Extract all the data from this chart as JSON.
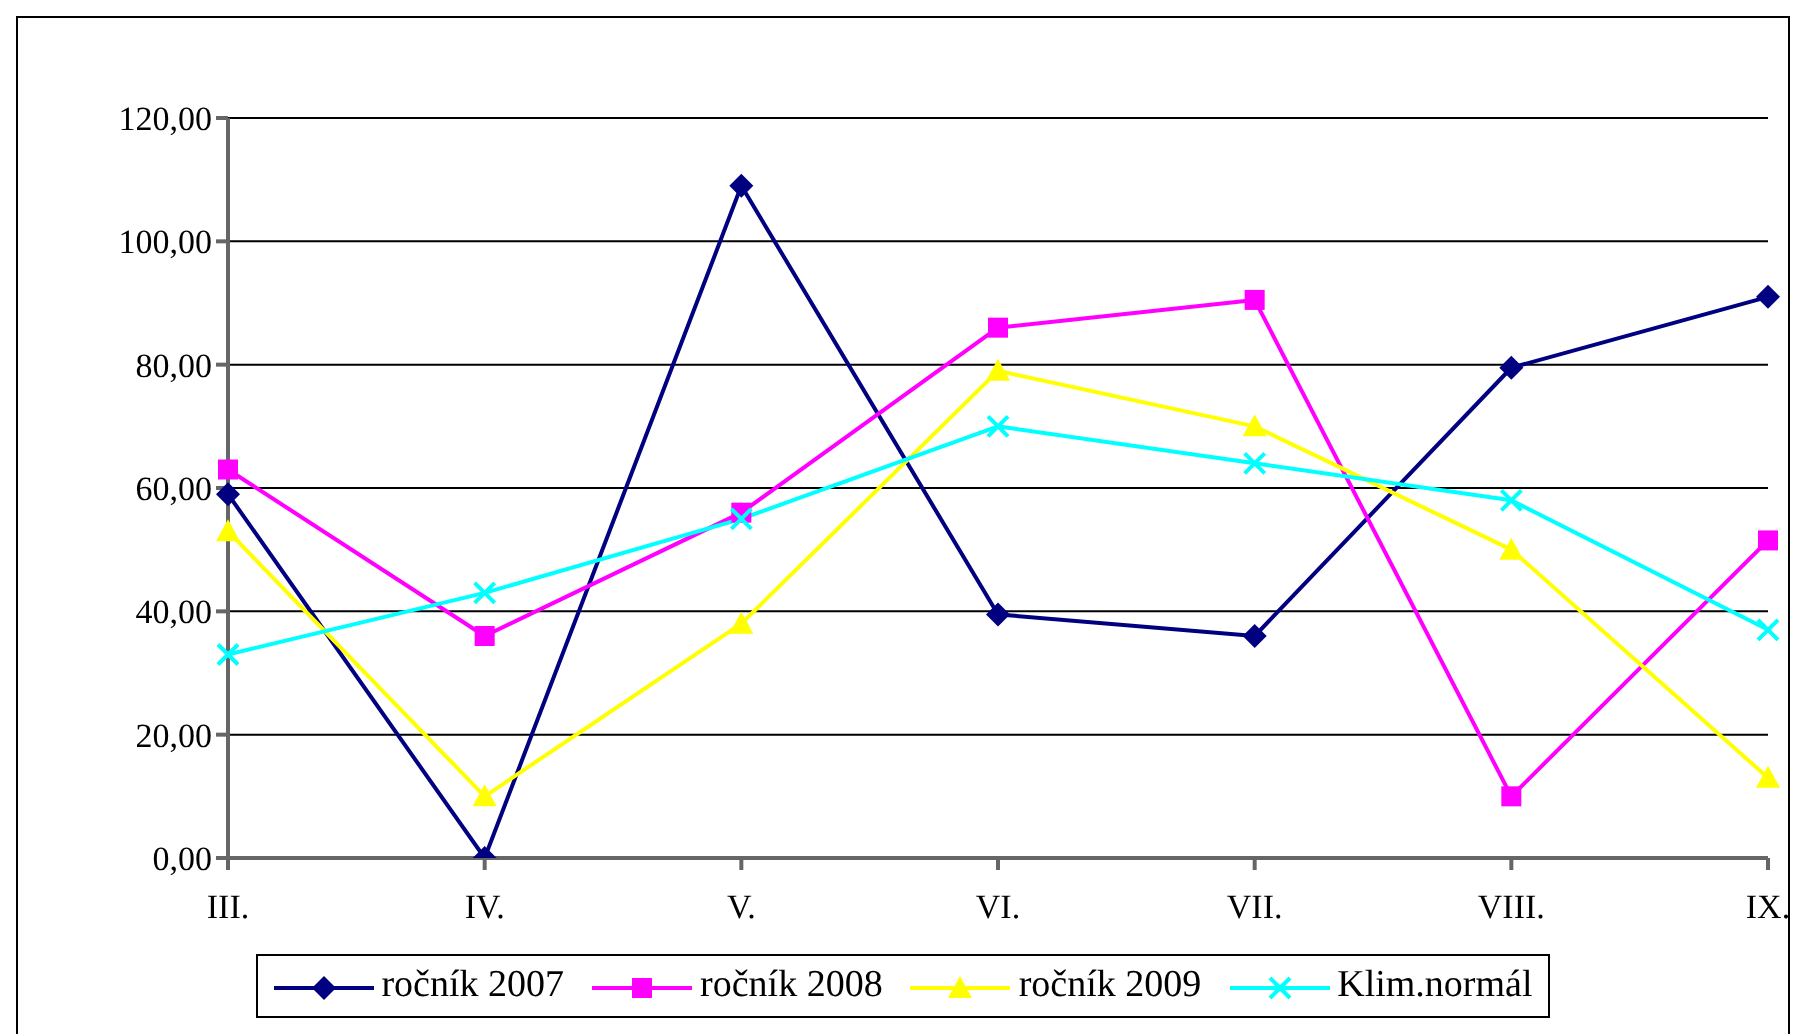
{
  "chart_data": {
    "type": "line",
    "categories": [
      "III.",
      "IV.",
      "V.",
      "VI.",
      "VII.",
      "VIII.",
      "IX."
    ],
    "series": [
      {
        "name": "ročník 2007",
        "color": "#000080",
        "marker": "diamond",
        "values": [
          59,
          0,
          109,
          39.5,
          36,
          79.5,
          91
        ]
      },
      {
        "name": "ročník 2008",
        "color": "#ff00ff",
        "marker": "square",
        "values": [
          63,
          36,
          56,
          86,
          90.5,
          10,
          51.5
        ]
      },
      {
        "name": "ročník 2009",
        "color": "#ffff00",
        "marker": "triangle",
        "values": [
          53,
          10,
          38,
          79,
          70,
          50,
          13
        ]
      },
      {
        "name": "Klim.normál",
        "color": "#00ffff",
        "marker": "cross",
        "values": [
          33,
          43,
          55,
          70,
          64,
          58,
          37
        ]
      }
    ],
    "ylim": [
      0,
      120
    ],
    "yticks": [
      {
        "value": 0,
        "label": "0,00"
      },
      {
        "value": 20,
        "label": "20,00"
      },
      {
        "value": 40,
        "label": "40,00"
      },
      {
        "value": 60,
        "label": "60,00"
      },
      {
        "value": 80,
        "label": "80,00"
      },
      {
        "value": 100,
        "label": "100,00"
      },
      {
        "value": 120,
        "label": "120,00"
      }
    ],
    "grid": "y",
    "legend": "bottom"
  }
}
